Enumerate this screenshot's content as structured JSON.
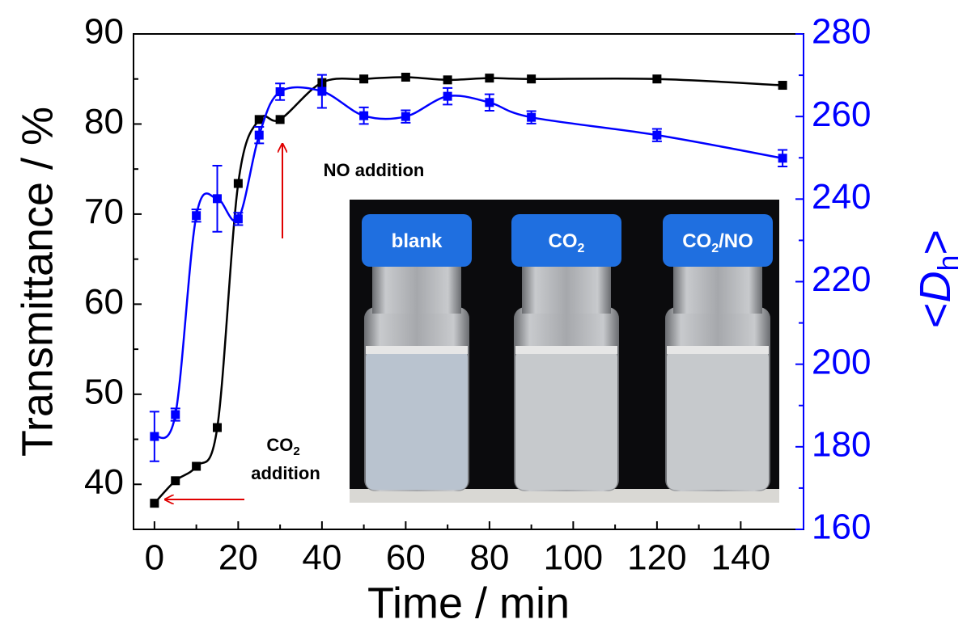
{
  "chart_data": {
    "type": "line",
    "xlabel": "Time / min",
    "ylabel": "Transmittance / %",
    "y2label": {
      "open": "<",
      "main": "D",
      "sub": "h",
      "close": ">"
    },
    "x": [
      0,
      5,
      10,
      15,
      20,
      25,
      30,
      40,
      50,
      60,
      70,
      80,
      90,
      120,
      150
    ],
    "series": [
      {
        "color": "#000000",
        "values": [
          37.9,
          40.4,
          42.0,
          46.3,
          73.4,
          80.5,
          80.5,
          84.6,
          85.0,
          85.2,
          84.9,
          85.1,
          85.0,
          85.0,
          84.3
        ]
      },
      {
        "color": "#0000ff",
        "axis": "y2",
        "values": [
          182.5,
          187.8,
          236.0,
          240.1,
          235.2,
          255.5,
          266.0,
          266.1,
          260.2,
          260.0,
          264.9,
          263.4,
          259.8,
          255.5,
          249.9
        ],
        "errors": [
          6,
          1.5,
          1.5,
          8,
          1.5,
          2,
          2,
          4,
          2,
          1.5,
          2,
          2,
          1.5,
          1.5,
          2
        ]
      }
    ],
    "xlim": [
      -5,
      155
    ],
    "xticks": [
      0,
      20,
      40,
      60,
      80,
      100,
      120,
      140
    ],
    "ylim": [
      35,
      90
    ],
    "yticks": [
      40,
      50,
      60,
      70,
      80,
      90
    ],
    "y2lim": [
      160,
      280
    ],
    "y2ticks": [
      160,
      180,
      200,
      220,
      240,
      260,
      280
    ],
    "annotations": [
      {
        "main": "NO addition"
      },
      {
        "main": "CO",
        "sub": "2",
        "tail": "addition"
      }
    ]
  },
  "photo": {
    "labels": [
      {
        "main": "blank"
      },
      {
        "main": "CO",
        "sub": "2"
      },
      {
        "main": "CO",
        "sub": "2",
        "tail": "/NO"
      }
    ]
  }
}
